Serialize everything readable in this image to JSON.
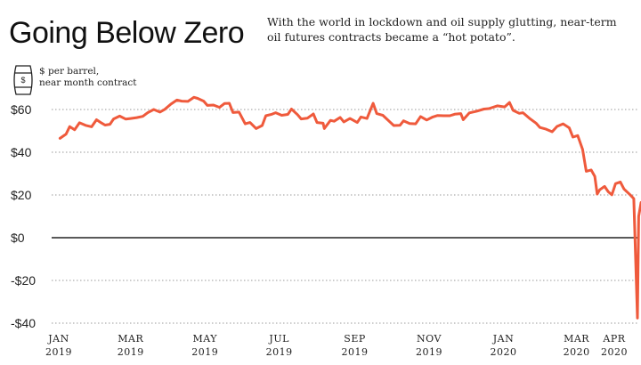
{
  "header": {
    "title": "Going Below Zero",
    "subtitle": "With the world in lockdown and oil supply glutting, near-term oil futures contracts became a “hot potato”.",
    "units_line1": "$ per barrel,",
    "units_line2": "near month contract",
    "icon": "barrel-icon"
  },
  "chart_data": {
    "type": "line",
    "title": "Going Below Zero",
    "ylabel": "$ per barrel, near month contract",
    "ylim": [
      -40,
      70
    ],
    "yticks": [
      {
        "value": 60,
        "label": "$60"
      },
      {
        "value": 40,
        "label": "$40"
      },
      {
        "value": 20,
        "label": "$20"
      },
      {
        "value": 0,
        "label": "$0"
      },
      {
        "value": -20,
        "label": "-$20"
      },
      {
        "value": -40,
        "label": "-$40"
      }
    ],
    "xlim": [
      "2019-01-01",
      "2020-04-30"
    ],
    "xticks": [
      {
        "date": "2019-01-01",
        "month": "JAN",
        "year": "2019"
      },
      {
        "date": "2019-03-01",
        "month": "MAR",
        "year": "2019"
      },
      {
        "date": "2019-05-01",
        "month": "MAY",
        "year": "2019"
      },
      {
        "date": "2019-07-01",
        "month": "JUL",
        "year": "2019"
      },
      {
        "date": "2019-09-01",
        "month": "SEP",
        "year": "2019"
      },
      {
        "date": "2019-11-01",
        "month": "NOV",
        "year": "2019"
      },
      {
        "date": "2020-01-01",
        "month": "JAN",
        "year": "2020"
      },
      {
        "date": "2020-03-01",
        "month": "MAR",
        "year": "2020"
      },
      {
        "date": "2020-04-01",
        "month": "APR",
        "year": "2020"
      }
    ],
    "grid": true,
    "color": "#ef5a3c",
    "series": [
      {
        "points": [
          [
            "2019-01-02",
            46.5
          ],
          [
            "2019-01-07",
            48.5
          ],
          [
            "2019-01-10",
            52
          ],
          [
            "2019-01-14",
            50.5
          ],
          [
            "2019-01-18",
            53.8
          ],
          [
            "2019-01-23",
            52.6
          ],
          [
            "2019-01-28",
            51.9
          ],
          [
            "2019-02-01",
            55.2
          ],
          [
            "2019-02-05",
            53.7
          ],
          [
            "2019-02-08",
            52.7
          ],
          [
            "2019-02-12",
            53.1
          ],
          [
            "2019-02-15",
            55.6
          ],
          [
            "2019-02-20",
            56.9
          ],
          [
            "2019-02-25",
            55.5
          ],
          [
            "2019-03-01",
            55.8
          ],
          [
            "2019-03-06",
            56.2
          ],
          [
            "2019-03-11",
            56.8
          ],
          [
            "2019-03-15",
            58.5
          ],
          [
            "2019-03-20",
            60
          ],
          [
            "2019-03-25",
            58.8
          ],
          [
            "2019-03-29",
            60.1
          ],
          [
            "2019-04-03",
            62.5
          ],
          [
            "2019-04-08",
            64.4
          ],
          [
            "2019-04-12",
            63.9
          ],
          [
            "2019-04-17",
            63.8
          ],
          [
            "2019-04-22",
            65.7
          ],
          [
            "2019-04-25",
            65.2
          ],
          [
            "2019-04-30",
            63.9
          ],
          [
            "2019-05-03",
            61.9
          ],
          [
            "2019-05-08",
            62.1
          ],
          [
            "2019-05-13",
            61
          ],
          [
            "2019-05-17",
            62.8
          ],
          [
            "2019-05-21",
            62.9
          ],
          [
            "2019-05-24",
            58.6
          ],
          [
            "2019-05-29",
            58.8
          ],
          [
            "2019-06-03",
            53.3
          ],
          [
            "2019-06-07",
            53.9
          ],
          [
            "2019-06-12",
            51.1
          ],
          [
            "2019-06-17",
            52.5
          ],
          [
            "2019-06-20",
            57.1
          ],
          [
            "2019-06-25",
            57.8
          ],
          [
            "2019-06-28",
            58.5
          ],
          [
            "2019-07-03",
            57.3
          ],
          [
            "2019-07-08",
            57.7
          ],
          [
            "2019-07-11",
            60.2
          ],
          [
            "2019-07-16",
            57.6
          ],
          [
            "2019-07-19",
            55.6
          ],
          [
            "2019-07-24",
            55.9
          ],
          [
            "2019-07-29",
            57.9
          ],
          [
            "2019-08-01",
            53.9
          ],
          [
            "2019-08-06",
            53.6
          ],
          [
            "2019-08-07",
            51.1
          ],
          [
            "2019-08-12",
            54.9
          ],
          [
            "2019-08-15",
            54.5
          ],
          [
            "2019-08-20",
            56.3
          ],
          [
            "2019-08-23",
            54.2
          ],
          [
            "2019-08-28",
            55.8
          ],
          [
            "2019-09-03",
            53.9
          ],
          [
            "2019-09-06",
            56.5
          ],
          [
            "2019-09-11",
            55.8
          ],
          [
            "2019-09-16",
            62.9
          ],
          [
            "2019-09-19",
            58.1
          ],
          [
            "2019-09-24",
            57.3
          ],
          [
            "2019-09-30",
            54.1
          ],
          [
            "2019-10-03",
            52.5
          ],
          [
            "2019-10-08",
            52.6
          ],
          [
            "2019-10-11",
            54.7
          ],
          [
            "2019-10-16",
            53.4
          ],
          [
            "2019-10-21",
            53.3
          ],
          [
            "2019-10-25",
            56.7
          ],
          [
            "2019-10-30",
            55.1
          ],
          [
            "2019-11-04",
            56.5
          ],
          [
            "2019-11-08",
            57.2
          ],
          [
            "2019-11-13",
            57.1
          ],
          [
            "2019-11-18",
            57.1
          ],
          [
            "2019-11-22",
            57.8
          ],
          [
            "2019-11-27",
            58.1
          ],
          [
            "2019-11-29",
            55.2
          ],
          [
            "2019-12-04",
            58.4
          ],
          [
            "2019-12-10",
            59.2
          ],
          [
            "2019-12-16",
            60.2
          ],
          [
            "2019-12-20",
            60.4
          ],
          [
            "2019-12-27",
            61.7
          ],
          [
            "2020-01-02",
            61.2
          ],
          [
            "2020-01-06",
            63.3
          ],
          [
            "2020-01-09",
            59.6
          ],
          [
            "2020-01-14",
            58.2
          ],
          [
            "2020-01-17",
            58.5
          ],
          [
            "2020-01-23",
            55.6
          ],
          [
            "2020-01-28",
            53.5
          ],
          [
            "2020-01-31",
            51.6
          ],
          [
            "2020-02-05",
            50.8
          ],
          [
            "2020-02-10",
            49.6
          ],
          [
            "2020-02-14",
            52.1
          ],
          [
            "2020-02-19",
            53.3
          ],
          [
            "2020-02-24",
            51.4
          ],
          [
            "2020-02-27",
            47.1
          ],
          [
            "2020-03-02",
            47.8
          ],
          [
            "2020-03-06",
            41.3
          ],
          [
            "2020-03-09",
            31.1
          ],
          [
            "2020-03-13",
            31.7
          ],
          [
            "2020-03-16",
            28.7
          ],
          [
            "2020-03-18",
            20.4
          ],
          [
            "2020-03-20",
            22.4
          ],
          [
            "2020-03-24",
            24
          ],
          [
            "2020-03-27",
            21.5
          ],
          [
            "2020-03-30",
            20.1
          ],
          [
            "2020-04-02",
            25.3
          ],
          [
            "2020-04-06",
            26.1
          ],
          [
            "2020-04-09",
            22.8
          ],
          [
            "2020-04-14",
            20.1
          ],
          [
            "2020-04-17",
            18.3
          ],
          [
            "2020-04-20",
            -37.6
          ],
          [
            "2020-04-21",
            10
          ],
          [
            "2020-04-23",
            16.5
          ],
          [
            "2020-04-28",
            12.3
          ]
        ]
      }
    ]
  }
}
